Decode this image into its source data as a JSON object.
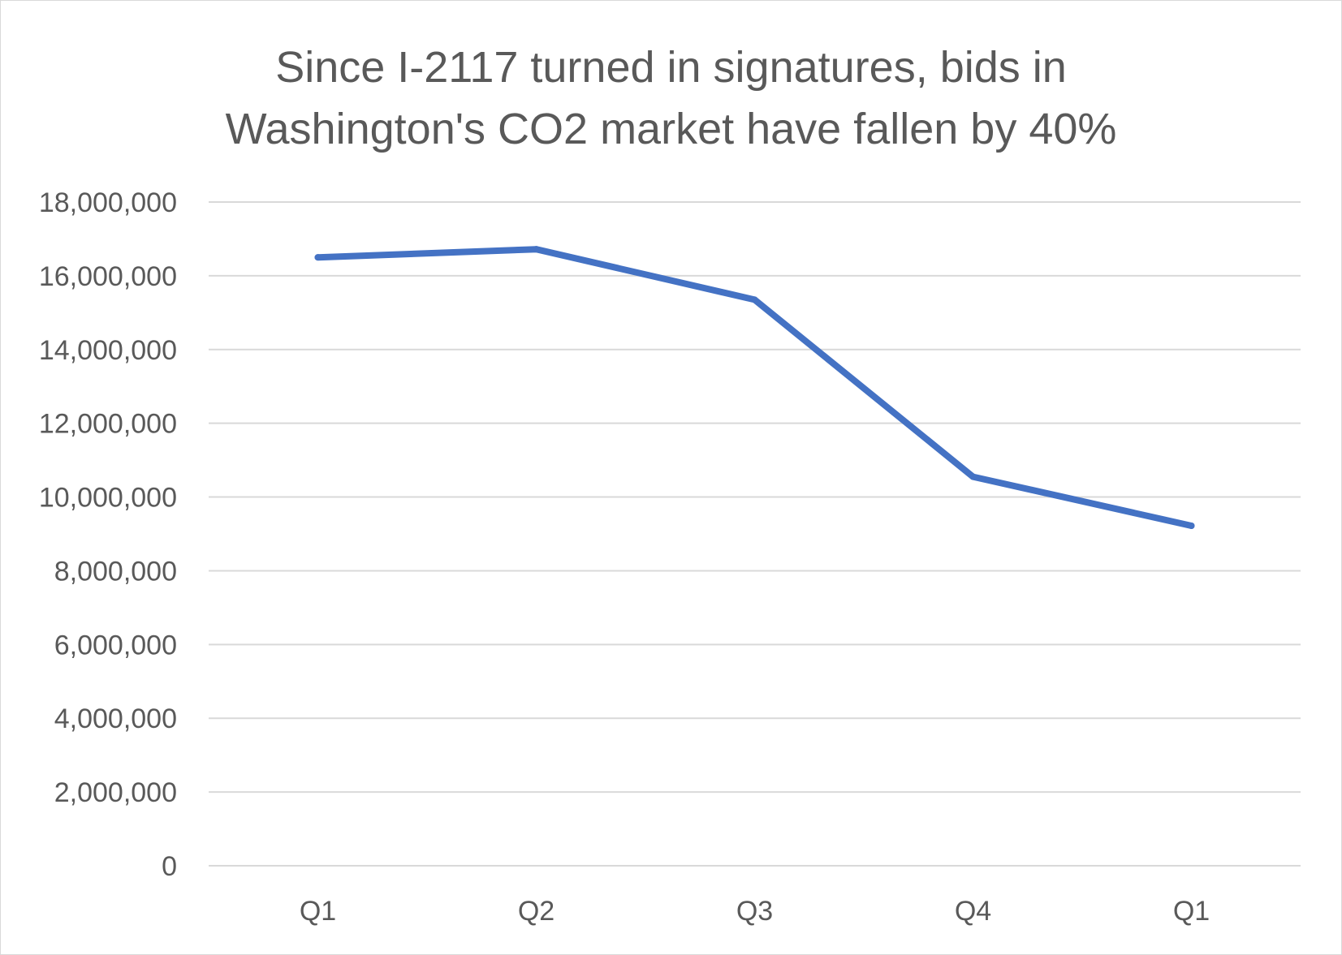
{
  "chart_data": {
    "type": "line",
    "title": "Since I-2117 turned in signatures, bids in Washington's CO2 market have fallen by 40%",
    "title_lines": [
      "Since I-2117 turned in signatures, bids in",
      "Washington's CO2 market have fallen by 40%"
    ],
    "xlabel": "",
    "ylabel": "",
    "categories": [
      "Q1",
      "Q2",
      "Q3",
      "Q4",
      "Q1"
    ],
    "series": [
      {
        "values": [
          16500000,
          16720000,
          15350000,
          10550000,
          9220000
        ],
        "color": "#4472c4"
      }
    ],
    "ylim": [
      0,
      18000000
    ],
    "y_ticks": [
      0,
      2000000,
      4000000,
      6000000,
      8000000,
      10000000,
      12000000,
      14000000,
      16000000,
      18000000
    ],
    "y_tick_labels": [
      "0",
      "2,000,000",
      "4,000,000",
      "6,000,000",
      "8,000,000",
      "10,000,000",
      "12,000,000",
      "14,000,000",
      "16,000,000",
      "18,000,000"
    ],
    "grid": true,
    "legend": "none",
    "colors": {
      "line": "#4472c4",
      "grid": "#d9d9d9",
      "text": "#595959"
    }
  }
}
